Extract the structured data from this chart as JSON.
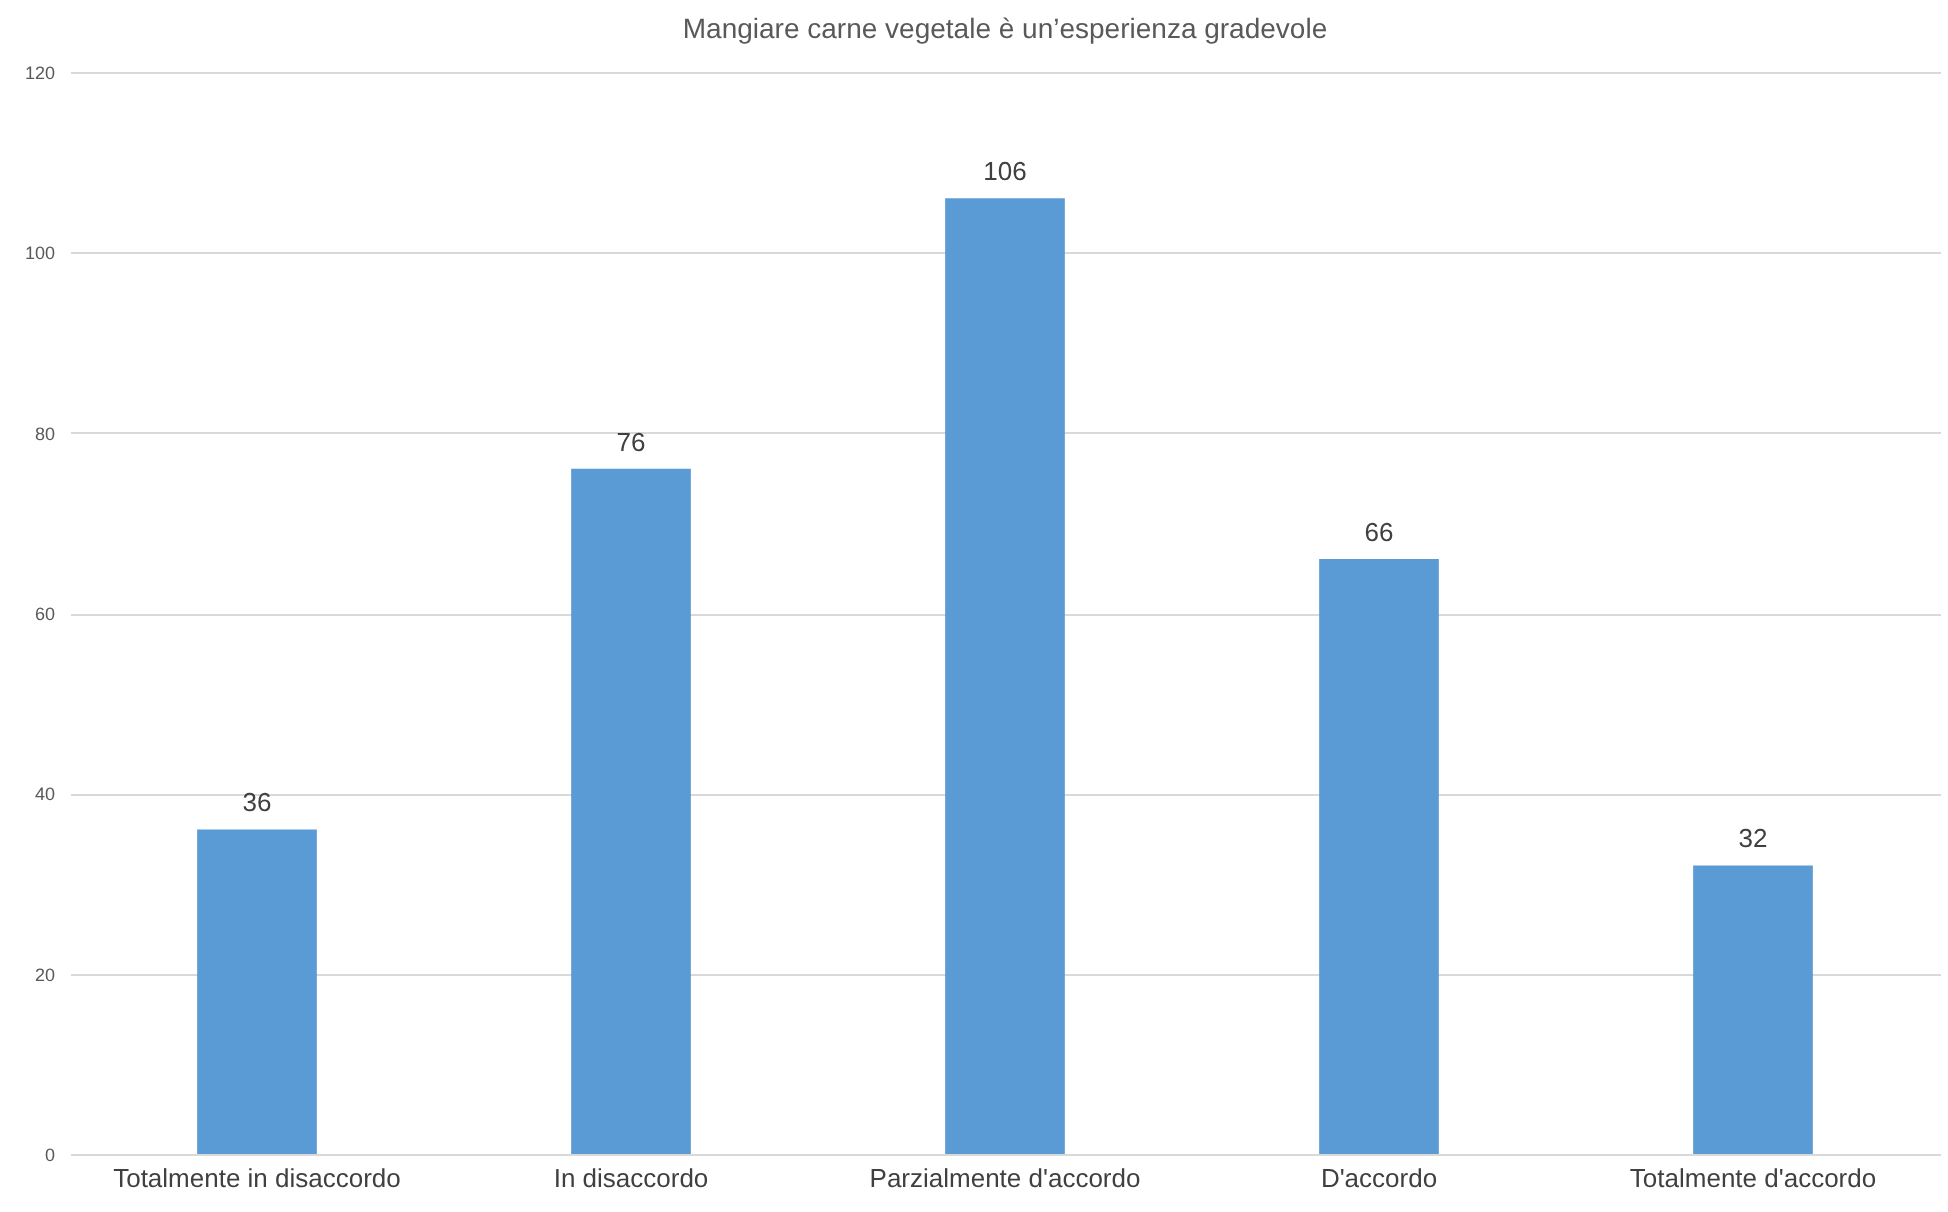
{
  "chart_data": {
    "type": "bar",
    "title": "Mangiare carne vegetale è un’esperienza gradevole",
    "categories": [
      "Totalmente in disaccordo",
      "In disaccordo",
      "Parzialmente d'accordo",
      "D'accordo",
      "Totalmente d'accordo"
    ],
    "values": [
      36,
      76,
      106,
      66,
      32
    ],
    "color": "#5b9bd5",
    "ylim": [
      0,
      120
    ],
    "yticks": [
      0,
      20,
      40,
      60,
      80,
      100,
      120
    ],
    "grid": "y",
    "data_labels": true
  }
}
